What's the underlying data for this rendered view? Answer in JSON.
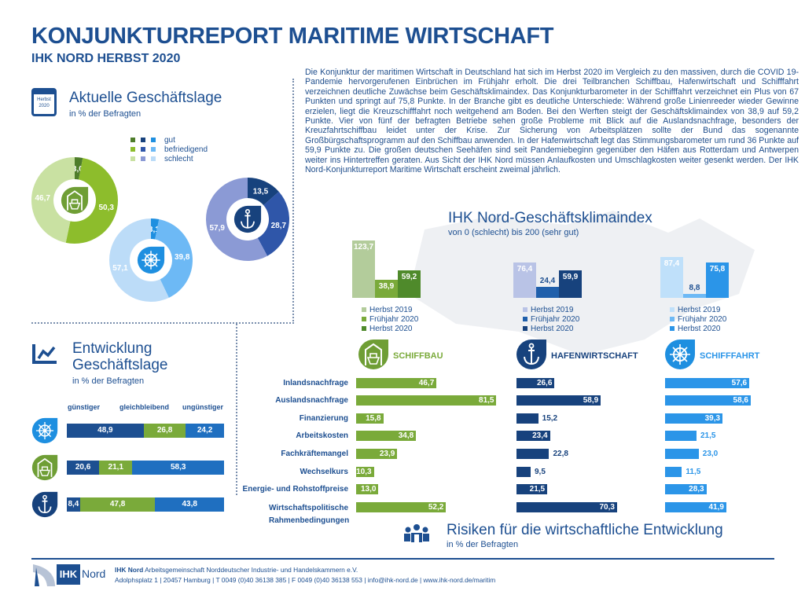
{
  "header": {
    "title": "KONJUNKTURREPORT MARITIME WIRTSCHAFT",
    "subtitle": "IHK NORD HERBST 2020"
  },
  "intro": "Die Konjunktur der maritimen Wirtschaft in Deutschland hat sich im Herbst 2020 im Vergleich zu den massiven, durch die COVID 19-Pandemie hervorgerufenen Einbrüchen im Frühjahr erholt. Die drei Teilbranchen Schiffbau, Hafenwirtschaft und Schifffahrt verzeichnen deutliche Zuwächse beim Geschäftsklimaindex. Das Konjunkturbarometer in der Schifffahrt verzeichnet ein Plus von 67 Punkten und springt auf 75,8 Punkte. In der Branche gibt es deutliche Unterschiede: Während große Linienreeder wieder Gewinne erzielen, liegt die Kreuzschifffahrt noch weitgehend am Boden. Bei den Werften steigt der Geschäftsklimaindex von 38,9 auf 59,2 Punkte. Vier von fünf der befragten Betriebe sehen große Probleme mit Blick auf die Auslandsnachfrage, besonders der Kreuzfahrtschiffbau leidet unter der Krise. Zur Sicherung von Arbeitsplätzen sollte der Bund das sogenannte Großbürgschaftsprogramm auf den Schiffbau anwenden. In der Hafenwirtschaft legt das Stimmungsbarometer um rund 36 Punkte auf 59,9 Punkte zu. Die großen deutschen Seehäfen sind seit Pandemiebeginn gegenüber den Häfen aus Rotterdam und Antwerpen weiter ins Hintertreffen geraten. Aus Sicht der IHK Nord müssen Anlaufkosten und Umschlagkosten weiter gesenkt werden. Der IHK Nord-Konjunkturreport Maritime Wirtschaft erscheint zweimal jährlich.",
  "calendar_icon": {
    "line1": "Herbst",
    "line2": "2020"
  },
  "sectors": {
    "schiffbau": "SCHIFFBAU",
    "hafen": "HAFENWIRTSCHAFT",
    "schifffahrt": "SCHIFFFAHRT"
  },
  "colors": {
    "title": "#1d4f91",
    "schiffbau": "#7aaa3a",
    "hafen": "#17427d",
    "schifffahrt": "#2b95e8"
  },
  "footer": {
    "logo_ihk": "IHK",
    "logo_nord": "Nord",
    "org_bold": "IHK Nord",
    "org": " Arbeitsgemeinschaft Norddeutscher Industrie- und Handelskammern e.V.",
    "address": "Adolphsplatz 1 | 20457 Hamburg | T 0049 (0)40 36138 385  | F 0049 (0)40 36138 553 | info@ihk-nord.de | www.ihk-nord.de/maritim"
  },
  "chart_data": [
    {
      "type": "pie",
      "title": "Aktuelle Geschäftslage",
      "subtitle": "in % der Befragten",
      "legend": [
        "gut",
        "befriedigend",
        "schlecht"
      ],
      "series": [
        {
          "sector": "schiffbau",
          "icon": "ship-icon",
          "values": [
            3.0,
            50.3,
            46.7
          ],
          "labels": [
            "3,0",
            "50,3",
            "46,7"
          ],
          "colors": [
            "#4e7d2b",
            "#8dbd2c",
            "#c9e1a2"
          ]
        },
        {
          "sector": "hafen",
          "icon": "anchor-icon",
          "values": [
            13.5,
            28.7,
            57.9
          ],
          "labels": [
            "13,5",
            "28,7",
            "57,9"
          ],
          "colors": [
            "#17427d",
            "#2f56a9",
            "#8b9ad5"
          ]
        },
        {
          "sector": "schifffahrt",
          "icon": "helm-icon",
          "values": [
            3.1,
            39.8,
            57.1
          ],
          "labels": [
            "3,1",
            "39,8",
            "57,1"
          ],
          "colors": [
            "#1e8fe0",
            "#6db9f5",
            "#bcdcf8"
          ]
        }
      ]
    },
    {
      "type": "bar",
      "stacked": true,
      "title": "Entwicklung Geschäftslage",
      "subtitle": "in % der Befragten",
      "categories": [
        "günstiger",
        "gleichbleibend",
        "ungünstiger"
      ],
      "colors": [
        "#1d4f91",
        "#7aaa3a",
        "#1f6fc0"
      ],
      "rows": [
        {
          "sector": "schifffahrt",
          "icon": "helm-icon",
          "values": [
            48.9,
            26.8,
            24.2
          ],
          "labels": [
            "48,9",
            "26,8",
            "24,2"
          ]
        },
        {
          "sector": "schiffbau",
          "icon": "ship-icon",
          "values": [
            20.6,
            21.1,
            58.3
          ],
          "labels": [
            "20,6",
            "21,1",
            "58,3"
          ]
        },
        {
          "sector": "hafen",
          "icon": "anchor-icon",
          "values": [
            8.4,
            47.8,
            43.8
          ],
          "labels": [
            "8,4",
            "47,8",
            "43,8"
          ]
        }
      ]
    },
    {
      "type": "bar",
      "title": "IHK Nord-Geschäftsklimaindex",
      "subtitle": "von 0 (schlecht) bis 200 (sehr gut)",
      "categories": [
        "Herbst 2019",
        "Frühjahr 2020",
        "Herbst 2020"
      ],
      "groups": [
        {
          "sector": "schiffbau",
          "values": [
            123.7,
            38.9,
            59.2
          ],
          "labels": [
            "123,7",
            "38,9",
            "59,2"
          ],
          "colors": [
            "#b3cc9b",
            "#7aaa3a",
            "#4f8a2b"
          ]
        },
        {
          "sector": "hafen",
          "values": [
            76.4,
            24.4,
            59.9
          ],
          "labels": [
            "76,4",
            "24,4",
            "59,9"
          ],
          "colors": [
            "#b9c3e6",
            "#1f5fab",
            "#17427d"
          ]
        },
        {
          "sector": "schifffahrt",
          "values": [
            87.4,
            8.8,
            75.8
          ],
          "labels": [
            "87,4",
            "8,8",
            "75,8"
          ],
          "colors": [
            "#bfe0fa",
            "#6db9f5",
            "#2b95e8"
          ]
        }
      ]
    },
    {
      "type": "bar",
      "orientation": "horizontal",
      "title": "Risiken für die wirtschaftliche Entwicklung",
      "subtitle": "in % der Befragten",
      "categories": [
        "Inlandsnachfrage",
        "Auslandsnachfrage",
        "Finanzierung",
        "Arbeitskosten",
        "Fachkräftemangel",
        "Wechselkurs",
        "Energie- und Rohstoffpreise",
        "Wirtschaftspolitische Rahmenbedingungen"
      ],
      "series": [
        {
          "sector": "schiffbau",
          "color": "#7aaa3a",
          "values": [
            46.7,
            81.5,
            15.8,
            34.8,
            23.9,
            10.3,
            13.0,
            52.2
          ],
          "labels": [
            "46,7",
            "81,5",
            "15,8",
            "34,8",
            "23,9",
            "10,3",
            "13,0",
            "52,2"
          ]
        },
        {
          "sector": "hafen",
          "color": "#17427d",
          "values": [
            26.6,
            58.9,
            15.2,
            23.4,
            22.8,
            9.5,
            21.5,
            70.3
          ],
          "labels": [
            "26,6",
            "58,9",
            "15,2",
            "23,4",
            "22,8",
            "9,5",
            "21,5",
            "70,3"
          ]
        },
        {
          "sector": "schifffahrt",
          "color": "#2b95e8",
          "values": [
            57.6,
            58.6,
            39.3,
            21.5,
            23.0,
            11.5,
            28.3,
            41.9
          ],
          "labels": [
            "57,6",
            "58,6",
            "39,3",
            "21,5",
            "23,0",
            "11,5",
            "28,3",
            "41,9"
          ]
        }
      ]
    }
  ]
}
